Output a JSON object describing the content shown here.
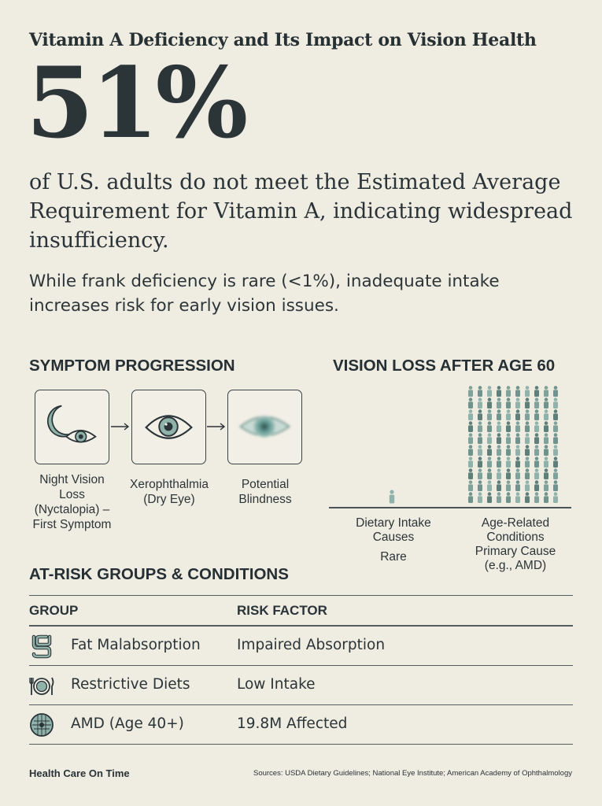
{
  "title": "Vitamin A Deficiency and Its Impact on Vision Health",
  "headline_stat": "51%",
  "headline_desc": "of U.S. adults do not meet the Estimated Average Requirement for Vitamin A, indicating widespread insufficiency.",
  "sub_desc": "While frank deficiency is rare (<1%), inadequate intake increases risk for early vision issues.",
  "symptom_section": {
    "heading": "SYMPTOM PROGRESSION",
    "steps": [
      {
        "label_lines": [
          "Night Vision",
          "Loss",
          "(Nyctalopia) –",
          "First Symptom"
        ],
        "icon": "moon-eye-icon"
      },
      {
        "label_lines": [
          "Xerophthalmia",
          "(Dry Eye)"
        ],
        "icon": "eye-icon"
      },
      {
        "label_lines": [
          "Potential",
          "Blindness"
        ],
        "icon": "blurred-eye-icon"
      }
    ]
  },
  "vision_section": {
    "heading": "VISION LOSS AFTER AGE 60",
    "left_label_lines": [
      "Dietary Intake",
      "Causes"
    ],
    "left_sub": "Rare",
    "right_label_lines": [
      "Age-Related",
      "Conditions",
      "Primary Cause",
      "(e.g., AMD)"
    ],
    "icon": "person-icon"
  },
  "risk_section": {
    "heading": "AT-RISK GROUPS & CONDITIONS",
    "columns": [
      "GROUP",
      "RISK FACTOR"
    ],
    "rows": [
      {
        "group": "Fat Malabsorption",
        "risk": "Impaired Absorption",
        "icon": "intestine-icon"
      },
      {
        "group": "Restrictive Diets",
        "risk": "Low Intake",
        "icon": "plate-utensils-icon"
      },
      {
        "group": "AMD (Age 40+)",
        "risk": "19.8M Affected",
        "icon": "retina-grid-icon"
      }
    ]
  },
  "footer": {
    "brand": "Health Care On Time",
    "sources": "Sources: USDA Dietary Guidelines; National Eye Institute; American Academy of Ophthalmology"
  },
  "colors": {
    "background": "#efece2",
    "ink": "#2a3337",
    "teal": "#8fb3aa",
    "teal_dark": "#5e7f7a"
  }
}
